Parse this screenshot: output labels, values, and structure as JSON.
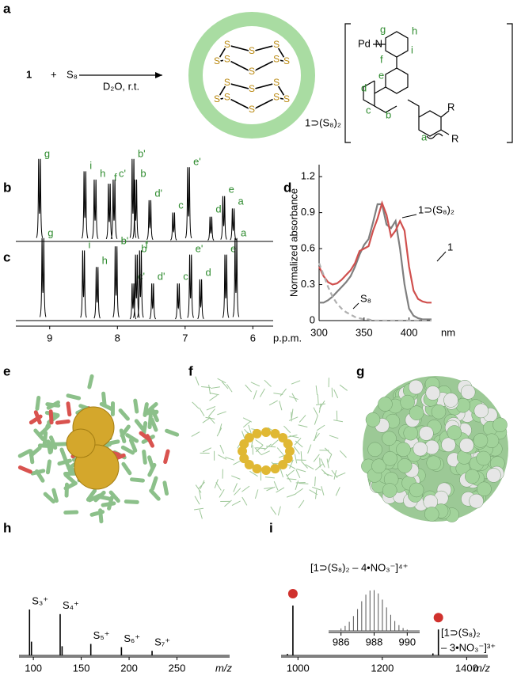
{
  "panel_labels": [
    "a",
    "b",
    "c",
    "d",
    "e",
    "f",
    "g",
    "h",
    "i"
  ],
  "scheme": {
    "reactant": "1",
    "plus": "+",
    "reagent": "S₈",
    "conditions": "D₂O, r.t.",
    "product": "1⊃(S₈)₂",
    "sulfur_atoms": [
      "S",
      "S",
      "S",
      "S",
      "S",
      "S",
      "S",
      "S",
      "S",
      "S",
      "S",
      "S",
      "S",
      "S",
      "S",
      "S"
    ],
    "metal": "Pd",
    "nitrogen": "N",
    "ligand_labels": [
      "g",
      "h",
      "i",
      "f",
      "e",
      "d",
      "c",
      "b",
      "a"
    ],
    "substituents": [
      "R",
      "R"
    ]
  },
  "chart_data": [
    {
      "type": "nmr",
      "color": "#000000",
      "label_color": "#2e8b2e",
      "xlim": [
        9.5,
        5.7
      ],
      "peaks_ppm": [
        9.15,
        8.48,
        8.33,
        8.12,
        8.05,
        7.77,
        7.73,
        7.52,
        7.17,
        6.95,
        6.62,
        6.43,
        6.29
      ],
      "heights": [
        1.0,
        0.85,
        0.75,
        0.7,
        0.75,
        1.0,
        0.75,
        0.5,
        0.35,
        0.9,
        0.3,
        0.55,
        0.4
      ],
      "peak_labels": [
        "g",
        "i",
        "h",
        "f",
        "c'",
        "b'",
        "b",
        "d'",
        "c",
        "e'",
        "d",
        "e",
        "a"
      ]
    },
    {
      "type": "nmr",
      "color": "#000000",
      "label_color": "#2e8b2e",
      "xlim": [
        9.5,
        5.7
      ],
      "peaks_ppm": [
        9.1,
        8.5,
        8.3,
        8.02,
        7.77,
        7.72,
        7.66,
        7.48,
        7.1,
        6.92,
        6.77,
        6.4,
        6.25
      ],
      "heights": [
        1.0,
        0.85,
        0.65,
        0.9,
        0.45,
        0.8,
        0.85,
        0.45,
        0.45,
        0.8,
        0.5,
        0.8,
        1.0
      ],
      "peak_labels": [
        "g",
        "i",
        "h",
        "b'",
        "c'",
        "b",
        "f",
        "d'",
        "c",
        "e'",
        "d",
        "e",
        "a"
      ],
      "xticks": [
        9,
        8,
        7,
        6
      ],
      "xlabel": "p.p.m."
    },
    {
      "type": "line",
      "ylabel": "Normalized absorbance",
      "xlabel": "nm",
      "xlim": [
        300,
        425
      ],
      "ylim": [
        0,
        1.3
      ],
      "xticks": [
        300,
        350,
        400
      ],
      "yticks": [
        0,
        0.3,
        0.6,
        0.9,
        1.2
      ],
      "x": [
        300,
        305,
        310,
        315,
        320,
        325,
        330,
        335,
        340,
        345,
        350,
        355,
        360,
        365,
        370,
        375,
        380,
        385,
        390,
        395,
        400,
        405,
        410,
        415,
        420,
        425
      ],
      "series": [
        {
          "name": "1⊃(S₈)₂",
          "color": "#7f7f7f",
          "style": "solid",
          "values": [
            0.15,
            0.15,
            0.17,
            0.2,
            0.24,
            0.28,
            0.32,
            0.37,
            0.45,
            0.55,
            0.63,
            0.68,
            0.82,
            0.97,
            0.97,
            0.8,
            0.77,
            0.83,
            0.6,
            0.3,
            0.1,
            0.04,
            0.02,
            0.01,
            0.01,
            0.01
          ]
        },
        {
          "name": "1",
          "color": "#d0504e",
          "style": "solid",
          "values": [
            0.45,
            0.37,
            0.32,
            0.3,
            0.31,
            0.34,
            0.38,
            0.42,
            0.48,
            0.58,
            0.6,
            0.62,
            0.75,
            0.85,
            0.98,
            0.88,
            0.7,
            0.75,
            0.83,
            0.75,
            0.45,
            0.25,
            0.18,
            0.16,
            0.15,
            0.15
          ]
        },
        {
          "name": "S₈",
          "color": "#b0b0b0",
          "style": "dashed",
          "values": [
            0.48,
            0.38,
            0.28,
            0.2,
            0.14,
            0.1,
            0.07,
            0.05,
            0.03,
            0.02,
            0.01,
            0.01,
            0,
            0,
            0,
            0,
            0,
            0,
            0,
            0,
            0,
            0,
            0,
            0,
            0,
            0
          ]
        }
      ]
    },
    {
      "type": "ms",
      "color": "#000000",
      "xlim": [
        85,
        305
      ],
      "xticks": [
        100,
        150,
        200,
        250
      ],
      "xlabel": "m/z",
      "x": [
        96,
        98,
        128,
        130,
        160,
        192,
        224
      ],
      "values": [
        1.0,
        0.3,
        0.9,
        0.2,
        0.25,
        0.18,
        0.1
      ],
      "peak_labels": [
        "S₃⁺",
        null,
        "S₄⁺",
        null,
        "S₅⁺",
        "S₆⁺",
        "S₇⁺"
      ]
    },
    {
      "type": "ms",
      "color": "#000000",
      "xlim": [
        960,
        1450
      ],
      "xticks": [
        1000,
        1200,
        1400
      ],
      "xlabel": "m/z",
      "x": [
        975,
        988,
        1320,
        1333
      ],
      "values": [
        0.03,
        1.0,
        0.04,
        0.52
      ],
      "marked": [
        false,
        true,
        false,
        true
      ],
      "marker_color": "#d0312d",
      "annotations": [
        "[1⊃(S₈)₂ – 4•NO₃⁻]⁴⁺",
        "[1⊃(S₈)₂",
        "– 3•NO₃⁻]³⁺"
      ]
    },
    {
      "type": "ms",
      "color": "#555555",
      "xlim": [
        985.25,
        990.75
      ],
      "xticks": [
        986,
        988,
        990
      ],
      "x": [
        986.0,
        986.25,
        986.5,
        986.75,
        987.0,
        987.25,
        987.5,
        987.75,
        988.0,
        988.25,
        988.5,
        988.75,
        989.0,
        989.25,
        989.5,
        989.75,
        990.0
      ],
      "values": [
        0.06,
        0.12,
        0.22,
        0.36,
        0.53,
        0.72,
        0.88,
        0.98,
        0.99,
        0.91,
        0.76,
        0.57,
        0.39,
        0.24,
        0.14,
        0.07,
        0.03
      ]
    }
  ]
}
